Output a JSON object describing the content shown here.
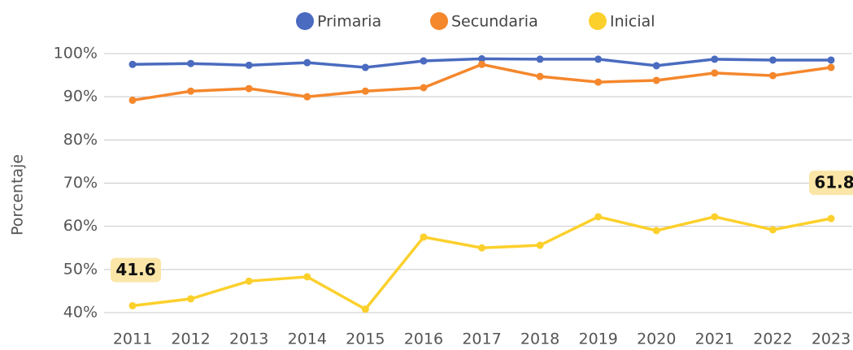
{
  "chart_data": {
    "type": "line",
    "ylabel": "Porcentaje",
    "categories": [
      "2011",
      "2012",
      "2013",
      "2014",
      "2015",
      "2016",
      "2017",
      "2018",
      "2019",
      "2020",
      "2021",
      "2022",
      "2023"
    ],
    "series": [
      {
        "name": "Primaria",
        "color": "#4a6bbf",
        "values": [
          97.5,
          97.7,
          97.3,
          97.9,
          96.8,
          98.3,
          98.8,
          98.7,
          98.7,
          97.2,
          98.7,
          98.5,
          98.5
        ]
      },
      {
        "name": "Secundaria",
        "color": "#f5872c",
        "values": [
          89.2,
          91.3,
          91.9,
          90.0,
          91.3,
          92.1,
          97.5,
          94.7,
          93.4,
          93.8,
          95.5,
          94.9,
          96.8
        ]
      },
      {
        "name": "Inicial",
        "color": "#fcd02c",
        "values": [
          41.6,
          43.2,
          47.3,
          48.3,
          40.8,
          57.5,
          55.0,
          55.6,
          62.2,
          59.0,
          62.2,
          59.2,
          61.8
        ],
        "value_labels": [
          "41.6",
          null,
          null,
          null,
          null,
          null,
          null,
          null,
          null,
          null,
          null,
          null,
          "61.8"
        ]
      }
    ],
    "ylim": [
      40,
      100
    ],
    "yticks": [
      {
        "value": 40,
        "label": "40%"
      },
      {
        "value": 50,
        "label": "50%"
      },
      {
        "value": 60,
        "label": "60%"
      },
      {
        "value": 70,
        "label": "70%"
      },
      {
        "value": 80,
        "label": "80%"
      },
      {
        "value": 90,
        "label": "90%"
      },
      {
        "value": 100,
        "label": "100%"
      }
    ],
    "grid": true,
    "legend": "top"
  }
}
